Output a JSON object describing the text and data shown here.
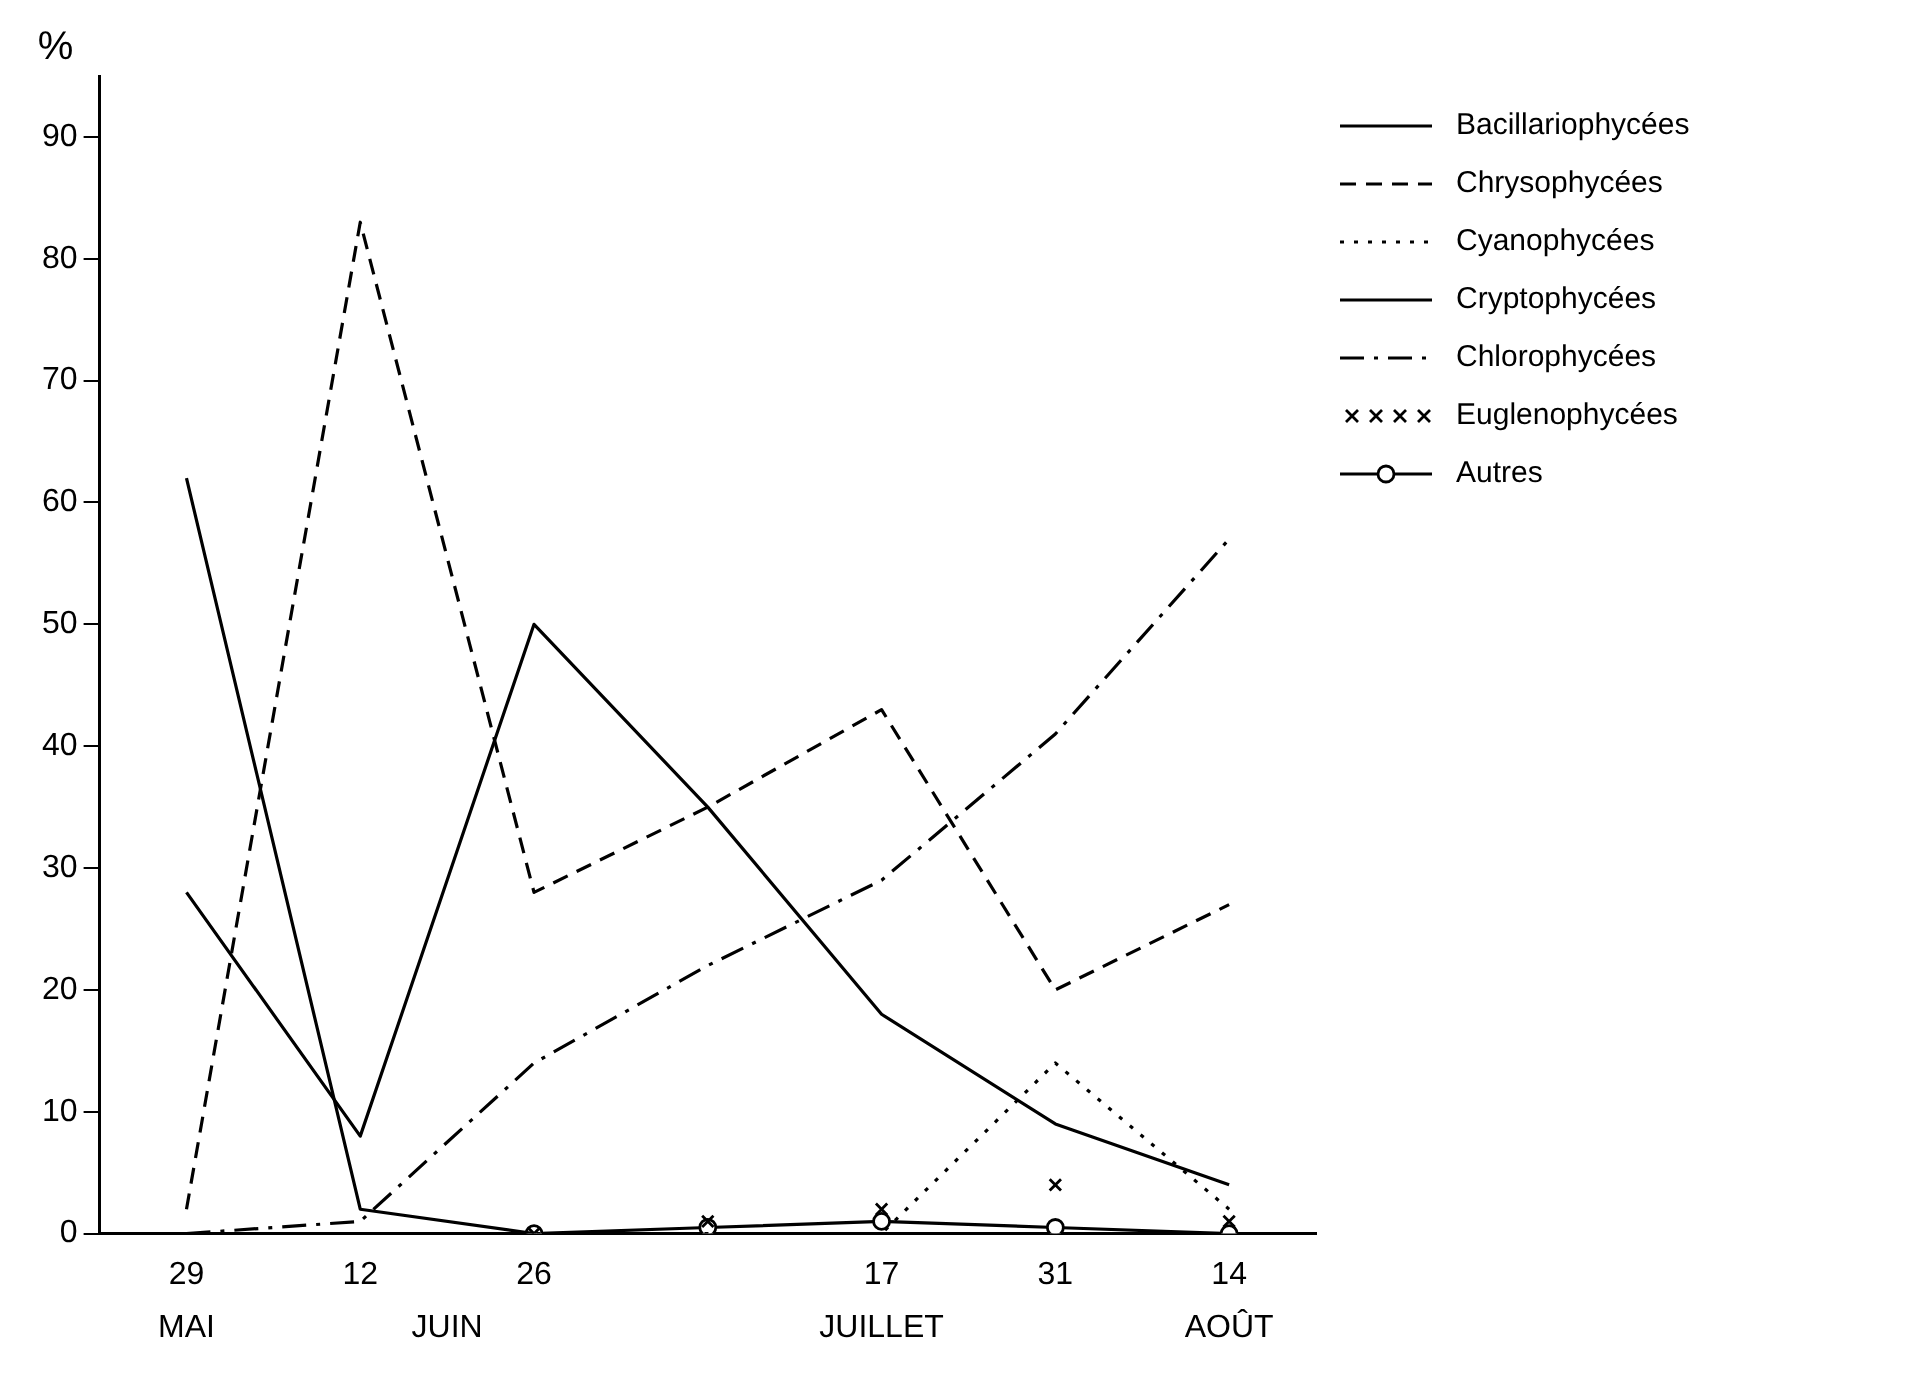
{
  "chart_data": {
    "type": "line",
    "ylabel": "%",
    "categories": [
      "29",
      "12",
      "26",
      null,
      "17",
      "31",
      "14"
    ],
    "series": [
      {
        "name": "Bacillariophycées",
        "color": "#000000",
        "line_style": "solid",
        "marker": "none",
        "values": [
          28,
          8,
          50,
          35,
          18,
          9,
          4
        ]
      },
      {
        "name": "Chrysophycées",
        "color": "#000000",
        "line_style": "dashed",
        "marker": "none",
        "values": [
          2,
          83,
          28,
          35,
          43,
          20,
          27
        ]
      },
      {
        "name": "Cyanophycées",
        "color": "#000000",
        "line_style": "dotted",
        "marker": "none",
        "values": [
          0,
          0,
          0,
          0,
          0,
          14,
          2
        ]
      },
      {
        "name": "Cryptophycées",
        "color": "#000000",
        "line_style": "solid",
        "marker": "none",
        "values": [
          62,
          2,
          0,
          null,
          null,
          null,
          null
        ]
      },
      {
        "name": "Chlorophycées",
        "color": "#000000",
        "line_style": "dashdot",
        "marker": "none",
        "values": [
          0,
          1,
          14,
          22,
          29,
          41,
          57
        ]
      },
      {
        "name": "Euglenophycées",
        "type": "scatter",
        "color": "#000000",
        "marker": "cross",
        "values": [
          null,
          null,
          0,
          1,
          2,
          4,
          1
        ]
      },
      {
        "name": "Autres",
        "color": "#000000",
        "line_style": "solid",
        "marker": "circle",
        "values": [
          null,
          null,
          0,
          0.5,
          1,
          0.5,
          0
        ]
      }
    ],
    "ylim": [
      0,
      95
    ],
    "yticks": [
      0,
      10,
      20,
      30,
      40,
      50,
      60,
      70,
      80,
      90
    ],
    "grid": false,
    "legend": "right",
    "annotations": [
      "MAI",
      "JUIN",
      "JUILLET",
      "AOÛT"
    ]
  }
}
